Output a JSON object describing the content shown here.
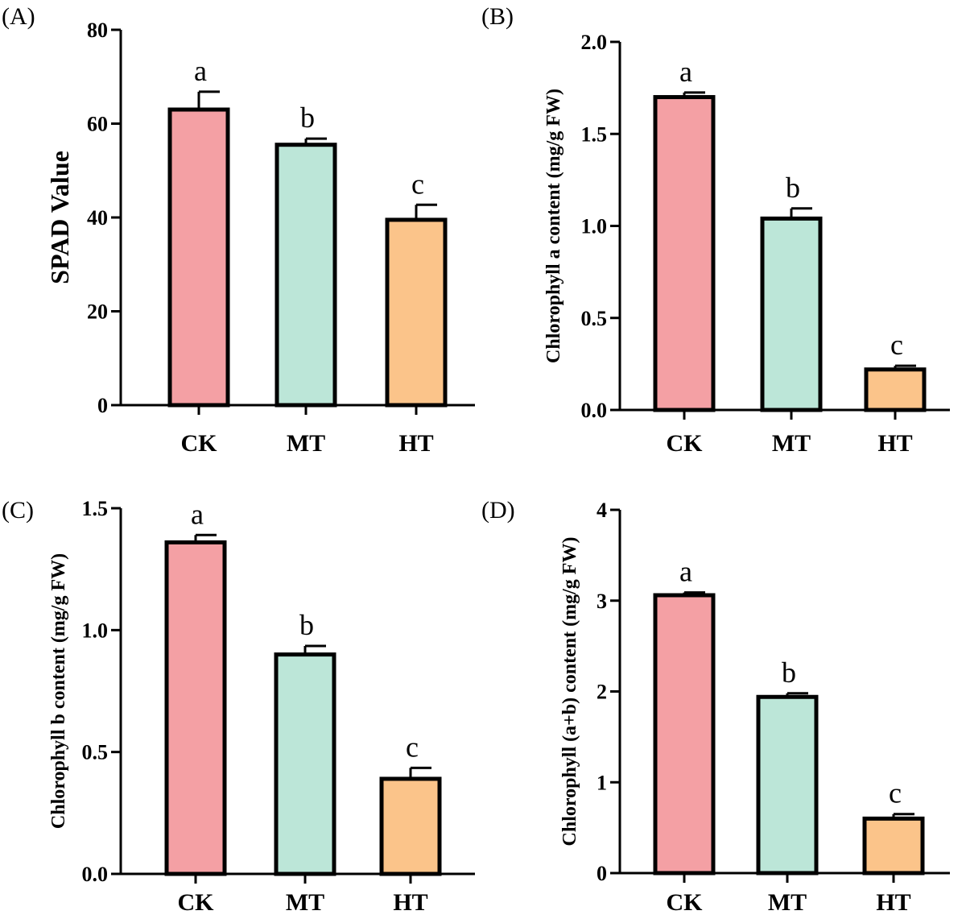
{
  "chart_data": [
    {
      "type": "bar",
      "panel": "(A)",
      "categories": [
        "CK",
        "MT",
        "HT"
      ],
      "values": [
        63,
        55.5,
        39.5
      ],
      "errors": [
        3.8,
        1.3,
        3.2
      ],
      "significance": [
        "a",
        "b",
        "c"
      ],
      "ylabel": "SPAD Value",
      "ylim": [
        0,
        80
      ],
      "yticks": [
        "0",
        "20",
        "40",
        "60",
        "80"
      ],
      "ytick_values": [
        0,
        20,
        40,
        60,
        80
      ],
      "colors": [
        "#f4a0a4",
        "#bce6d8",
        "#fbc48a"
      ],
      "grid": false
    },
    {
      "type": "bar",
      "panel": "(B)",
      "categories": [
        "CK",
        "MT",
        "HT"
      ],
      "values": [
        1.7,
        1.04,
        0.22
      ],
      "errors": [
        0.025,
        0.055,
        0.02
      ],
      "significance": [
        "a",
        "b",
        "c"
      ],
      "ylabel": "Chlorophyll a content (mg/g FW)",
      "ylim": [
        0,
        2.0
      ],
      "yticks": [
        "0.0",
        "0.5",
        "1.0",
        "1.5",
        "2.0"
      ],
      "ytick_values": [
        0,
        0.5,
        1.0,
        1.5,
        2.0
      ],
      "colors": [
        "#f4a0a4",
        "#bce6d8",
        "#fbc48a"
      ],
      "grid": false
    },
    {
      "type": "bar",
      "panel": "(C)",
      "categories": [
        "CK",
        "MT",
        "HT"
      ],
      "values": [
        1.36,
        0.9,
        0.39
      ],
      "errors": [
        0.03,
        0.035,
        0.045
      ],
      "significance": [
        "a",
        "b",
        "c"
      ],
      "ylabel": "Chlorophyll b content (mg/g FW)",
      "ylim": [
        0,
        1.5
      ],
      "yticks": [
        "0.0",
        "0.5",
        "1.0",
        "1.5"
      ],
      "ytick_values": [
        0,
        0.5,
        1.0,
        1.5
      ],
      "colors": [
        "#f4a0a4",
        "#bce6d8",
        "#fbc48a"
      ],
      "grid": false
    },
    {
      "type": "bar",
      "panel": "(D)",
      "categories": [
        "CK",
        "MT",
        "HT"
      ],
      "values": [
        3.06,
        1.94,
        0.6
      ],
      "errors": [
        0.03,
        0.04,
        0.05
      ],
      "significance": [
        "a",
        "b",
        "c"
      ],
      "ylabel": "Chlorophyll (a+b) content (mg/g FW)",
      "ylim": [
        0,
        4
      ],
      "yticks": [
        "0",
        "1",
        "2",
        "3",
        "4"
      ],
      "ytick_values": [
        0,
        1,
        2,
        3,
        4
      ],
      "colors": [
        "#f4a0a4",
        "#bce6d8",
        "#fbc48a"
      ],
      "grid": false
    }
  ]
}
